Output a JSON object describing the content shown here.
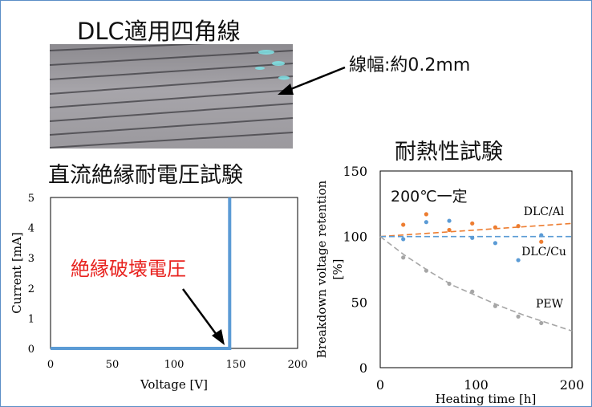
{
  "photo_title": "DLC適用四角線",
  "wire_width_label": "線幅:約0.2mm",
  "colors": {
    "frame": "#5b8ec7",
    "dc_line": "#5b9bd5",
    "red_note": "#e8231f",
    "dlc_al": "#ed7d31",
    "dlc_cu": "#5b9bd5",
    "pew": "#a6a6a6"
  },
  "chart_data": [
    {
      "type": "line",
      "title": "直流絶縁耐電圧試験",
      "xlabel": "Voltage [V]",
      "ylabel": "Current [mA]",
      "xlim": [
        0,
        200
      ],
      "ylim": [
        0,
        5
      ],
      "xticks": [
        0,
        50,
        100,
        150,
        200
      ],
      "yticks": [
        0,
        1,
        2,
        3,
        4,
        5
      ],
      "grid": false,
      "annotation": "絶縁破壊電圧",
      "series": [
        {
          "x": [
            0,
            145,
            145
          ],
          "y": [
            0,
            0,
            5
          ]
        }
      ]
    },
    {
      "type": "scatter",
      "title": "耐熱性試験",
      "condition_label": "200℃一定",
      "xlabel": "Heating time [h]",
      "ylabel": "Breakdown voltage retention [%]",
      "xlim": [
        0,
        200
      ],
      "ylim": [
        0,
        150
      ],
      "xticks": [
        0,
        100,
        200
      ],
      "yticks": [
        0,
        50,
        100,
        150
      ],
      "grid": false,
      "series": [
        {
          "name": "DLC/Al",
          "x": [
            24,
            48,
            72,
            96,
            120,
            144,
            168
          ],
          "y": [
            109,
            117,
            105,
            110,
            107,
            108,
            96
          ],
          "trend": {
            "x": [
              0,
              200
            ],
            "y": [
              100,
              110
            ]
          }
        },
        {
          "name": "DLC/Cu",
          "x": [
            24,
            48,
            72,
            96,
            120,
            144,
            168
          ],
          "y": [
            98,
            111,
            112,
            99,
            95,
            82,
            101
          ],
          "trend": {
            "x": [
              0,
              200
            ],
            "y": [
              100,
              100
            ]
          }
        },
        {
          "name": "PEW",
          "x": [
            24,
            48,
            72,
            96,
            120,
            144,
            168
          ],
          "y": [
            84,
            74,
            64,
            58,
            47,
            39,
            34
          ],
          "trend": {
            "x": [
              0,
              25,
              50,
              75,
              100,
              125,
              150,
              175,
              200
            ],
            "y": [
              100,
              86,
              74,
              63,
              55,
              47,
              40,
              34,
              28
            ]
          }
        }
      ]
    }
  ]
}
